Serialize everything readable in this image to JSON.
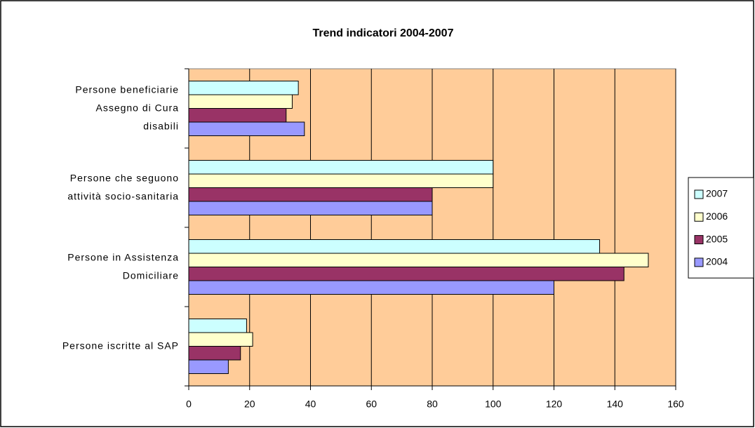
{
  "chart_data": {
    "type": "hbar",
    "title": "Trend indicatori 2004-2007",
    "categories": [
      [
        "Persone beneficiarie",
        "Assegno di Cura",
        "disabili"
      ],
      [
        "Persone che seguono",
        "attività socio-sanitaria"
      ],
      [
        "Persone in Assistenza",
        "Domiciliare"
      ],
      [
        "Persone iscritte al SAP"
      ]
    ],
    "series": [
      {
        "name": "2007",
        "color": "#ccffff",
        "values": [
          36,
          100,
          135,
          19
        ]
      },
      {
        "name": "2006",
        "color": "#ffffcc",
        "values": [
          34,
          100,
          151,
          21
        ]
      },
      {
        "name": "2005",
        "color": "#993366",
        "values": [
          32,
          80,
          143,
          17
        ]
      },
      {
        "name": "2004",
        "color": "#9999ff",
        "values": [
          38,
          80,
          120,
          13
        ]
      }
    ],
    "xlim": [
      0,
      160
    ],
    "xticks": [
      0,
      20,
      40,
      60,
      80,
      100,
      120,
      140,
      160
    ],
    "grid": true,
    "legend": "right"
  }
}
